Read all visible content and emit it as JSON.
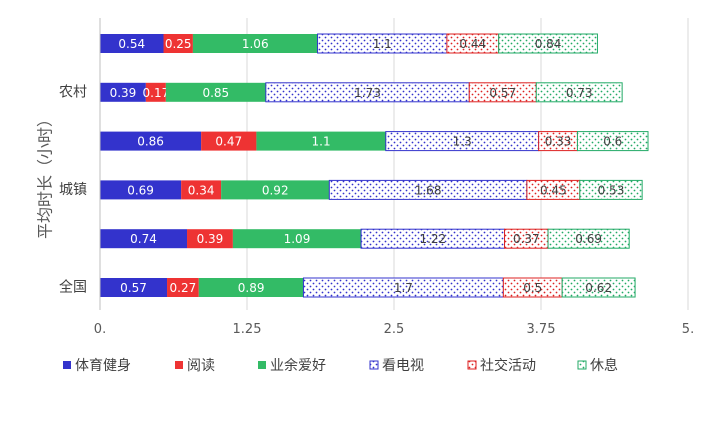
{
  "chart_data": {
    "type": "bar",
    "orientation": "horizontal",
    "stacked": true,
    "ylabel": "平均时长（小时）",
    "xlabel": "",
    "xlim": [
      0,
      5
    ],
    "x_ticks": [
      "0.",
      "1.25",
      "2.5",
      "3.75",
      "5."
    ],
    "categories": [
      "",
      "农村",
      "",
      "城镇",
      "",
      "全国"
    ],
    "grid": true,
    "legend_position": "bottom",
    "series": [
      {
        "name": "体育健身",
        "color": "#3333cc",
        "pattern": "solid",
        "values": [
          0.54,
          0.39,
          0.86,
          0.69,
          0.74,
          0.57
        ]
      },
      {
        "name": "阅读",
        "color": "#ee3333",
        "pattern": "solid",
        "values": [
          0.25,
          0.17,
          0.47,
          0.34,
          0.39,
          0.27
        ]
      },
      {
        "name": "业余爱好",
        "color": "#33bb66",
        "pattern": "solid",
        "values": [
          1.06,
          0.85,
          1.1,
          0.92,
          1.09,
          0.89
        ]
      },
      {
        "name": "看电视",
        "color": "#3333cc",
        "pattern": "dots",
        "values": [
          1.1,
          1.73,
          1.3,
          1.68,
          1.22,
          1.7
        ]
      },
      {
        "name": "社交活动",
        "color": "#dd2222",
        "pattern": "dots",
        "values": [
          0.44,
          0.57,
          0.33,
          0.45,
          0.37,
          0.5
        ]
      },
      {
        "name": "休息",
        "color": "#22aa66",
        "pattern": "dots",
        "values": [
          0.84,
          0.73,
          0.6,
          0.53,
          0.69,
          0.62
        ]
      }
    ]
  }
}
